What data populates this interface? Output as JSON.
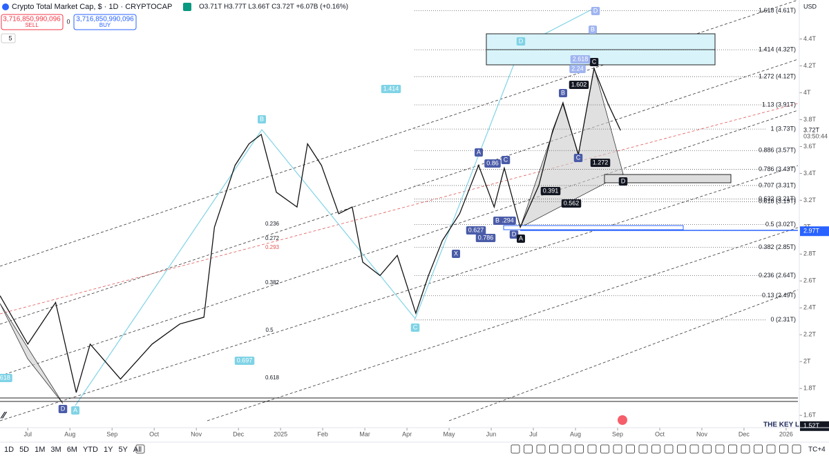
{
  "header": {
    "title": "Crypto Total Market Cap, $ · 1D · CRYPTOCAP",
    "ohlc": "O3.71T H3.77T L3.66T C3.72T +6.07B (+0.16%)",
    "sell_price": "3,716,850,990,096",
    "sell": "SELL",
    "spread": "0",
    "buy_price": "3,716,850,990,096",
    "buy": "BUY",
    "indicator_count": "5"
  },
  "currency": "USD",
  "price_axis": {
    "ylim": [
      1.56,
      4.69
    ],
    "ticks": [
      {
        "value": 4.4,
        "label": "4.4T"
      },
      {
        "value": 4.2,
        "label": "4.2T"
      },
      {
        "value": 4,
        "label": "4T"
      },
      {
        "value": 3.8,
        "label": "3.8T"
      },
      {
        "value": 3.6,
        "label": "3.6T"
      },
      {
        "value": 3.4,
        "label": "3.4T"
      },
      {
        "value": 3.2,
        "label": "3.2T"
      },
      {
        "value": 3,
        "label": "3T"
      },
      {
        "value": 2.8,
        "label": "2.8T"
      },
      {
        "value": 2.6,
        "label": "2.6T"
      },
      {
        "value": 2.4,
        "label": "2.4T"
      },
      {
        "value": 2.2,
        "label": "2.2T"
      },
      {
        "value": 2,
        "label": "2T"
      },
      {
        "value": 1.8,
        "label": "1.8T"
      },
      {
        "value": 1.6,
        "label": "1.6T"
      }
    ]
  },
  "price_badges": [
    {
      "value": 3.72,
      "label": "3.72T",
      "style": "last"
    },
    {
      "value": 2.97,
      "label": "2.97T",
      "style": "blue"
    },
    {
      "value": 1.52,
      "label": "1.52T",
      "style": "black"
    }
  ],
  "countdown": "03:50:44",
  "time_axis": {
    "xlim": [
      -0.66,
      18.28
    ],
    "ticks": [
      {
        "value": 0,
        "label": "Jul"
      },
      {
        "value": 1,
        "label": "Aug"
      },
      {
        "value": 2,
        "label": "Sep"
      },
      {
        "value": 3,
        "label": "Oct"
      },
      {
        "value": 4,
        "label": "Nov"
      },
      {
        "value": 5,
        "label": "Dec"
      },
      {
        "value": 6,
        "label": "2025"
      },
      {
        "value": 7,
        "label": "Feb"
      },
      {
        "value": 8,
        "label": "Mar"
      },
      {
        "value": 9,
        "label": "Apr"
      },
      {
        "value": 10,
        "label": "May"
      },
      {
        "value": 11,
        "label": "Jun"
      },
      {
        "value": 12,
        "label": "Jul"
      },
      {
        "value": 13,
        "label": "Aug"
      },
      {
        "value": 14,
        "label": "Sep"
      },
      {
        "value": 15,
        "label": "Oct"
      },
      {
        "value": 16,
        "label": "Nov"
      },
      {
        "value": 17,
        "label": "Dec"
      },
      {
        "value": 18,
        "label": "2026"
      }
    ]
  },
  "price_series": {
    "x": [
      -0.66,
      0,
      0.66,
      1.15,
      1.48,
      2.2,
      2.95,
      3.61,
      4.18,
      4.43,
      4.92,
      5.25,
      5.54,
      5.9,
      6.39,
      6.64,
      6.97,
      7.38,
      7.7,
      7.95,
      8.36,
      8.77,
      9.21,
      9.51,
      9.84,
      10.25,
      10.7,
      11.07,
      11.31,
      11.69,
      12.13,
      12.46,
      12.7,
      13.07,
      13.44,
      13.77,
      14.07
    ],
    "values": [
      2.49,
      2.13,
      2.44,
      1.77,
      2.13,
      1.87,
      2.13,
      2.28,
      2.33,
      3.0,
      3.46,
      3.62,
      3.69,
      3.26,
      3.15,
      3.62,
      3.46,
      3.1,
      3.15,
      2.74,
      2.64,
      2.79,
      2.36,
      2.64,
      2.9,
      3.1,
      3.46,
      3.15,
      3.44,
      3.0,
      3.31,
      3.72,
      3.92,
      3.54,
      4.18,
      3.92,
      3.72
    ]
  },
  "fib_levels": [
    {
      "value": 4.61,
      "label": "1.618 (4.61T)"
    },
    {
      "value": 4.32,
      "label": "1.414 (4.32T)"
    },
    {
      "value": 4.12,
      "label": "1.272 (4.12T)"
    },
    {
      "value": 3.91,
      "label": "1.13 (3.91T)"
    },
    {
      "value": 3.73,
      "label": "1 (3.73T)"
    },
    {
      "value": 3.57,
      "label": "0.886 (3.57T)"
    },
    {
      "value": 3.43,
      "label": "0.786 (3.43T)"
    },
    {
      "value": 3.31,
      "label": "0.707 (3.31T)"
    },
    {
      "value": 3.21,
      "label": "0.632 (3.21T)"
    },
    {
      "value": 3.19,
      "label": "0.618 (3.19T)"
    },
    {
      "value": 3.02,
      "label": "0.5 (3.02T)"
    },
    {
      "value": 2.85,
      "label": "0.382 (2.85T)"
    },
    {
      "value": 2.64,
      "label": "0.236 (2.64T)"
    },
    {
      "value": 2.49,
      "label": "0.13 (2.49T)"
    },
    {
      "value": 2.31,
      "label": "0 (2.31T)"
    }
  ],
  "pattern_labels": [
    "B",
    "D",
    "1.414",
    "0.697",
    "C",
    "A",
    "D",
    "X",
    "A",
    "0.86",
    "C",
    "B",
    ".294",
    "0.627",
    "0.786",
    "D",
    "A",
    "B",
    "C",
    "0.391",
    "0.562",
    "1.602",
    "1.272",
    "C",
    "D",
    "2.618",
    "2.24",
    "D",
    "B",
    ".618"
  ],
  "left_fib_labels": [
    "0.236",
    "0.272",
    "0.293",
    "0.382",
    "0.5",
    "0.618"
  ],
  "watermark": "THE KEY L",
  "timeframes": [
    "1D",
    "5D",
    "1M",
    "3M",
    "6M",
    "YTD",
    "1Y",
    "5Y",
    "All"
  ],
  "timezone": "TC+4"
}
